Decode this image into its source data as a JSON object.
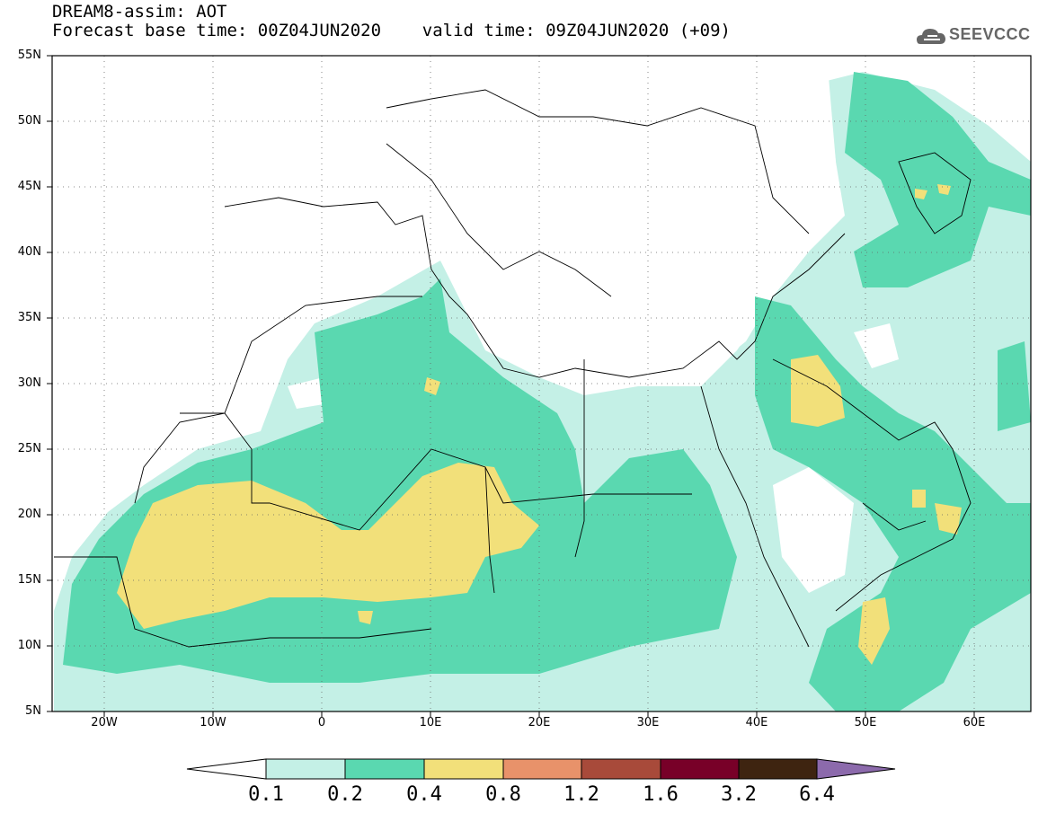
{
  "header": {
    "line1": "DREAM8-assim: AOT",
    "line2": "Forecast base time: 00Z04JUN2020    valid time: 09Z04JUN2020 (+09)"
  },
  "logo": {
    "text": "SEEVCCC",
    "icon": "cloud-icon"
  },
  "map": {
    "lon_range": [
      -25,
      65
    ],
    "lat_range": [
      5,
      55
    ],
    "lat_ticks": [
      "55N",
      "50N",
      "45N",
      "40N",
      "35N",
      "30N",
      "25N",
      "20N",
      "15N",
      "10N",
      "5N"
    ],
    "lon_ticks": [
      "20W",
      "10W",
      "0",
      "10E",
      "20E",
      "30E",
      "40E",
      "50E",
      "60E"
    ],
    "grid": "dotted"
  },
  "colorbar": {
    "colors": [
      "#ffffff",
      "#c4f0e6",
      "#5ad8b0",
      "#f2e07a",
      "#e8926a",
      "#a84a3a",
      "#780028",
      "#3e2410",
      "#8c6aac"
    ],
    "labels": [
      "0.1",
      "0.2",
      "0.4",
      "0.8",
      "1.2",
      "1.6",
      "3.2",
      "6.4"
    ]
  }
}
